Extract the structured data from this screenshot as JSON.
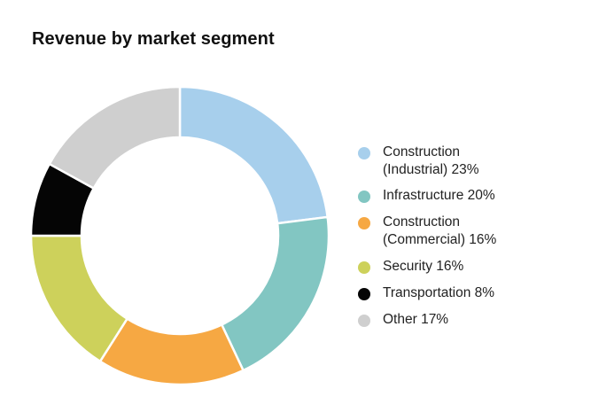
{
  "chart_data": {
    "type": "pie",
    "title": "Revenue by market segment",
    "donut": true,
    "legend_position": "right",
    "slices": [
      {
        "label": "Construction\n(Industrial) 23%",
        "value": 23,
        "color": "#a7cfec"
      },
      {
        "label": "Infrastructure 20%",
        "value": 20,
        "color": "#82c6c2"
      },
      {
        "label": "Construction\n(Commercial) 16%",
        "value": 16,
        "color": "#f6a843"
      },
      {
        "label": "Security 16%",
        "value": 16,
        "color": "#cdd15b"
      },
      {
        "label": "Transportation 8%",
        "value": 8,
        "color": "#050505"
      },
      {
        "label": "Other 17%",
        "value": 17,
        "color": "#cfcfcf"
      }
    ]
  }
}
